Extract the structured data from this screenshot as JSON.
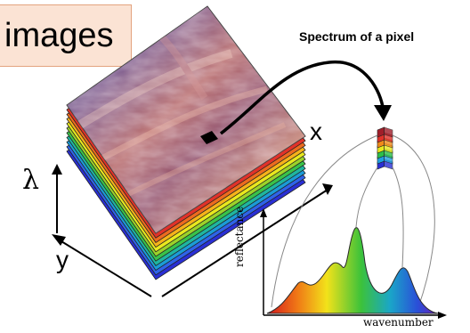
{
  "title": "images",
  "spectrum_label": "Spectrum of a pixel",
  "axis_x": "x",
  "axis_y": "y",
  "axis_lambda": "λ",
  "plot_ylabel": "reflectance",
  "plot_xlabel": "wavenumber",
  "layer_colors": [
    "#2a2fd4",
    "#2f63e8",
    "#1b9bd6",
    "#1fb5a0",
    "#39c24a",
    "#9bd22a",
    "#e8e81e",
    "#f5b21a",
    "#ec6b1f",
    "#e0322a"
  ],
  "pixel_stack_colors": [
    "#2a2fd4",
    "#1fa0e0",
    "#2bbf4a",
    "#e8e81e",
    "#f08a1a",
    "#e0322a",
    "#a01e2a"
  ]
}
